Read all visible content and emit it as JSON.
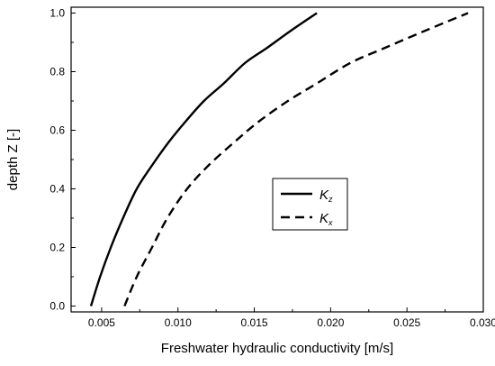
{
  "chart_data": {
    "type": "line",
    "xlabel": "Freshwater hydraulic conductivity [m/s]",
    "ylabel": "depth Z [-]",
    "xlim": [
      0.003,
      0.03
    ],
    "ylim": [
      -0.02,
      1.02
    ],
    "x_ticks": [
      0.005,
      0.01,
      0.015,
      0.02,
      0.025,
      0.03
    ],
    "x_tick_labels": [
      "0.005",
      "0.010",
      "0.015",
      "0.020",
      "0.025",
      "0.030"
    ],
    "y_ticks": [
      0.0,
      0.2,
      0.4,
      0.6,
      0.8,
      1.0
    ],
    "y_tick_labels": [
      "0.0",
      "0.2",
      "0.4",
      "0.6",
      "0.8",
      "1.0"
    ],
    "grid": false,
    "legend_position": "center-right",
    "series": [
      {
        "name": "K",
        "subscript": "z",
        "style": "solid",
        "color": "#000000",
        "x": [
          0.0043,
          0.0049,
          0.0056,
          0.0064,
          0.0073,
          0.0083,
          0.0094,
          0.0105,
          0.0117,
          0.013,
          0.0144,
          0.0158,
          0.0174,
          0.0191
        ],
        "y": [
          0.0,
          0.1,
          0.2,
          0.3,
          0.4,
          0.48,
          0.56,
          0.63,
          0.7,
          0.76,
          0.83,
          0.88,
          0.94,
          1.0
        ]
      },
      {
        "name": "K",
        "subscript": "x",
        "style": "dashed",
        "color": "#000000",
        "x": [
          0.0065,
          0.0073,
          0.0083,
          0.0093,
          0.0106,
          0.012,
          0.0137,
          0.0153,
          0.0172,
          0.0191,
          0.0213,
          0.0235,
          0.0262,
          0.029
        ],
        "y": [
          0.0,
          0.1,
          0.2,
          0.3,
          0.4,
          0.48,
          0.56,
          0.63,
          0.7,
          0.76,
          0.83,
          0.88,
          0.94,
          1.0
        ]
      }
    ]
  }
}
